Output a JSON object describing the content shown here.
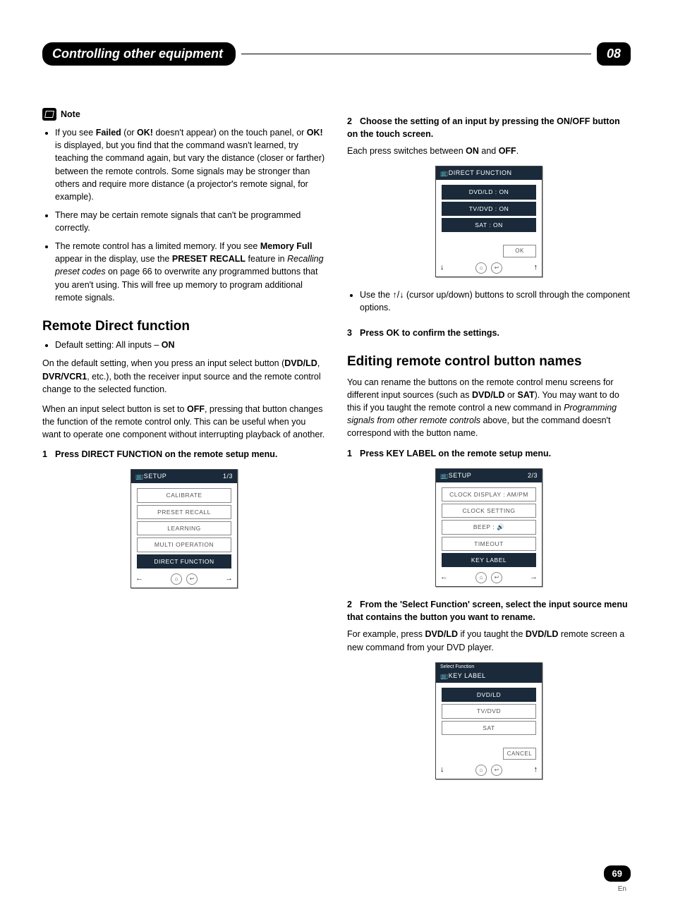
{
  "header": {
    "title": "Controlling other equipment",
    "chapter": "08"
  },
  "left": {
    "note_label": "Note",
    "notes": [
      "If you see <b>Failed</b> (or <b>OK!</b> doesn't appear) on the touch panel, or <b>OK!</b> is displayed, but you find that the command wasn't learned, try teaching the command again, but vary the distance (closer or farther) between the remote controls. Some signals may be stronger than others and require more distance (a projector's remote signal, for example).",
      "There may be certain remote signals that can't be programmed correctly.",
      "The remote control has a limited memory. If you see <b>Memory Full</b> appear in the display, use the <b>PRESET RECALL</b> feature in <i>Recalling preset codes</i> on page 66 to overwrite any programmed buttons that you aren't using. This will free up memory to program additional remote signals."
    ],
    "section1_title": "Remote Direct function",
    "default_setting": "Default setting: All inputs – <b>ON</b>",
    "p1": "On the default setting, when you press an input select button (<b>DVD/LD</b>, <b>DVR/VCR1</b>, etc.), both the receiver input source and the remote control change to the selected function.",
    "p2": "When an input select button is set to <b>OFF</b>, pressing that button changes the function of the remote control only. This can be useful when you want to operate one component without interrupting playback of another.",
    "step1": "Press DIRECT FUNCTION on the remote setup menu.",
    "screen1": {
      "title": "SETUP",
      "page": "1/3",
      "items": [
        "CALIBRATE",
        "PRESET RECALL",
        "LEARNING",
        "MULTI OPERATION",
        "DIRECT FUNCTION"
      ],
      "highlighted": 4
    }
  },
  "right": {
    "step2": "Choose the setting of an input by pressing the ON/OFF button on the touch screen.",
    "step2_sub": "Each press switches between <b>ON</b> and <b>OFF</b>.",
    "screen2": {
      "title": "DIRECT FUNCTION",
      "items": [
        "DVD/LD : ON",
        "TV/DVD : ON",
        "SAT : ON"
      ],
      "ok": "OK"
    },
    "cursor_note": "Use the ↑/↓ (cursor up/down) buttons to scroll through the component options.",
    "step3": "Press OK to confirm the settings.",
    "section2_title": "Editing remote control button names",
    "p3": "You can rename the buttons on the remote control menu screens for different input sources (such as <b>DVD/LD</b> or <b>SAT</b>). You may want to do this if you taught the remote control a new command in <i>Programming signals from other remote controls</i> above, but the command doesn't correspond with the button name.",
    "step_kl": "Press KEY LABEL on the remote setup menu.",
    "screen3": {
      "title": "SETUP",
      "page": "2/3",
      "items": [
        "CLOCK DISPLAY : AM/PM",
        "CLOCK SETTING",
        "BEEP : 🔊",
        "TIMEOUT",
        "KEY LABEL"
      ],
      "highlighted": 4
    },
    "step_sf": "From the 'Select Function' screen, select the input source menu that contains the button you want to rename.",
    "step_sf_sub": "For example, press <b>DVD/LD</b> if you taught the <b>DVD/LD</b> remote screen a new command from your DVD player.",
    "screen4": {
      "subtitle": "Select Function",
      "title": "KEY LABEL",
      "items": [
        "DVD/LD",
        "TV/DVD",
        "SAT"
      ],
      "cancel": "CANCEL"
    }
  },
  "footer": {
    "page": "69",
    "lang": "En"
  }
}
